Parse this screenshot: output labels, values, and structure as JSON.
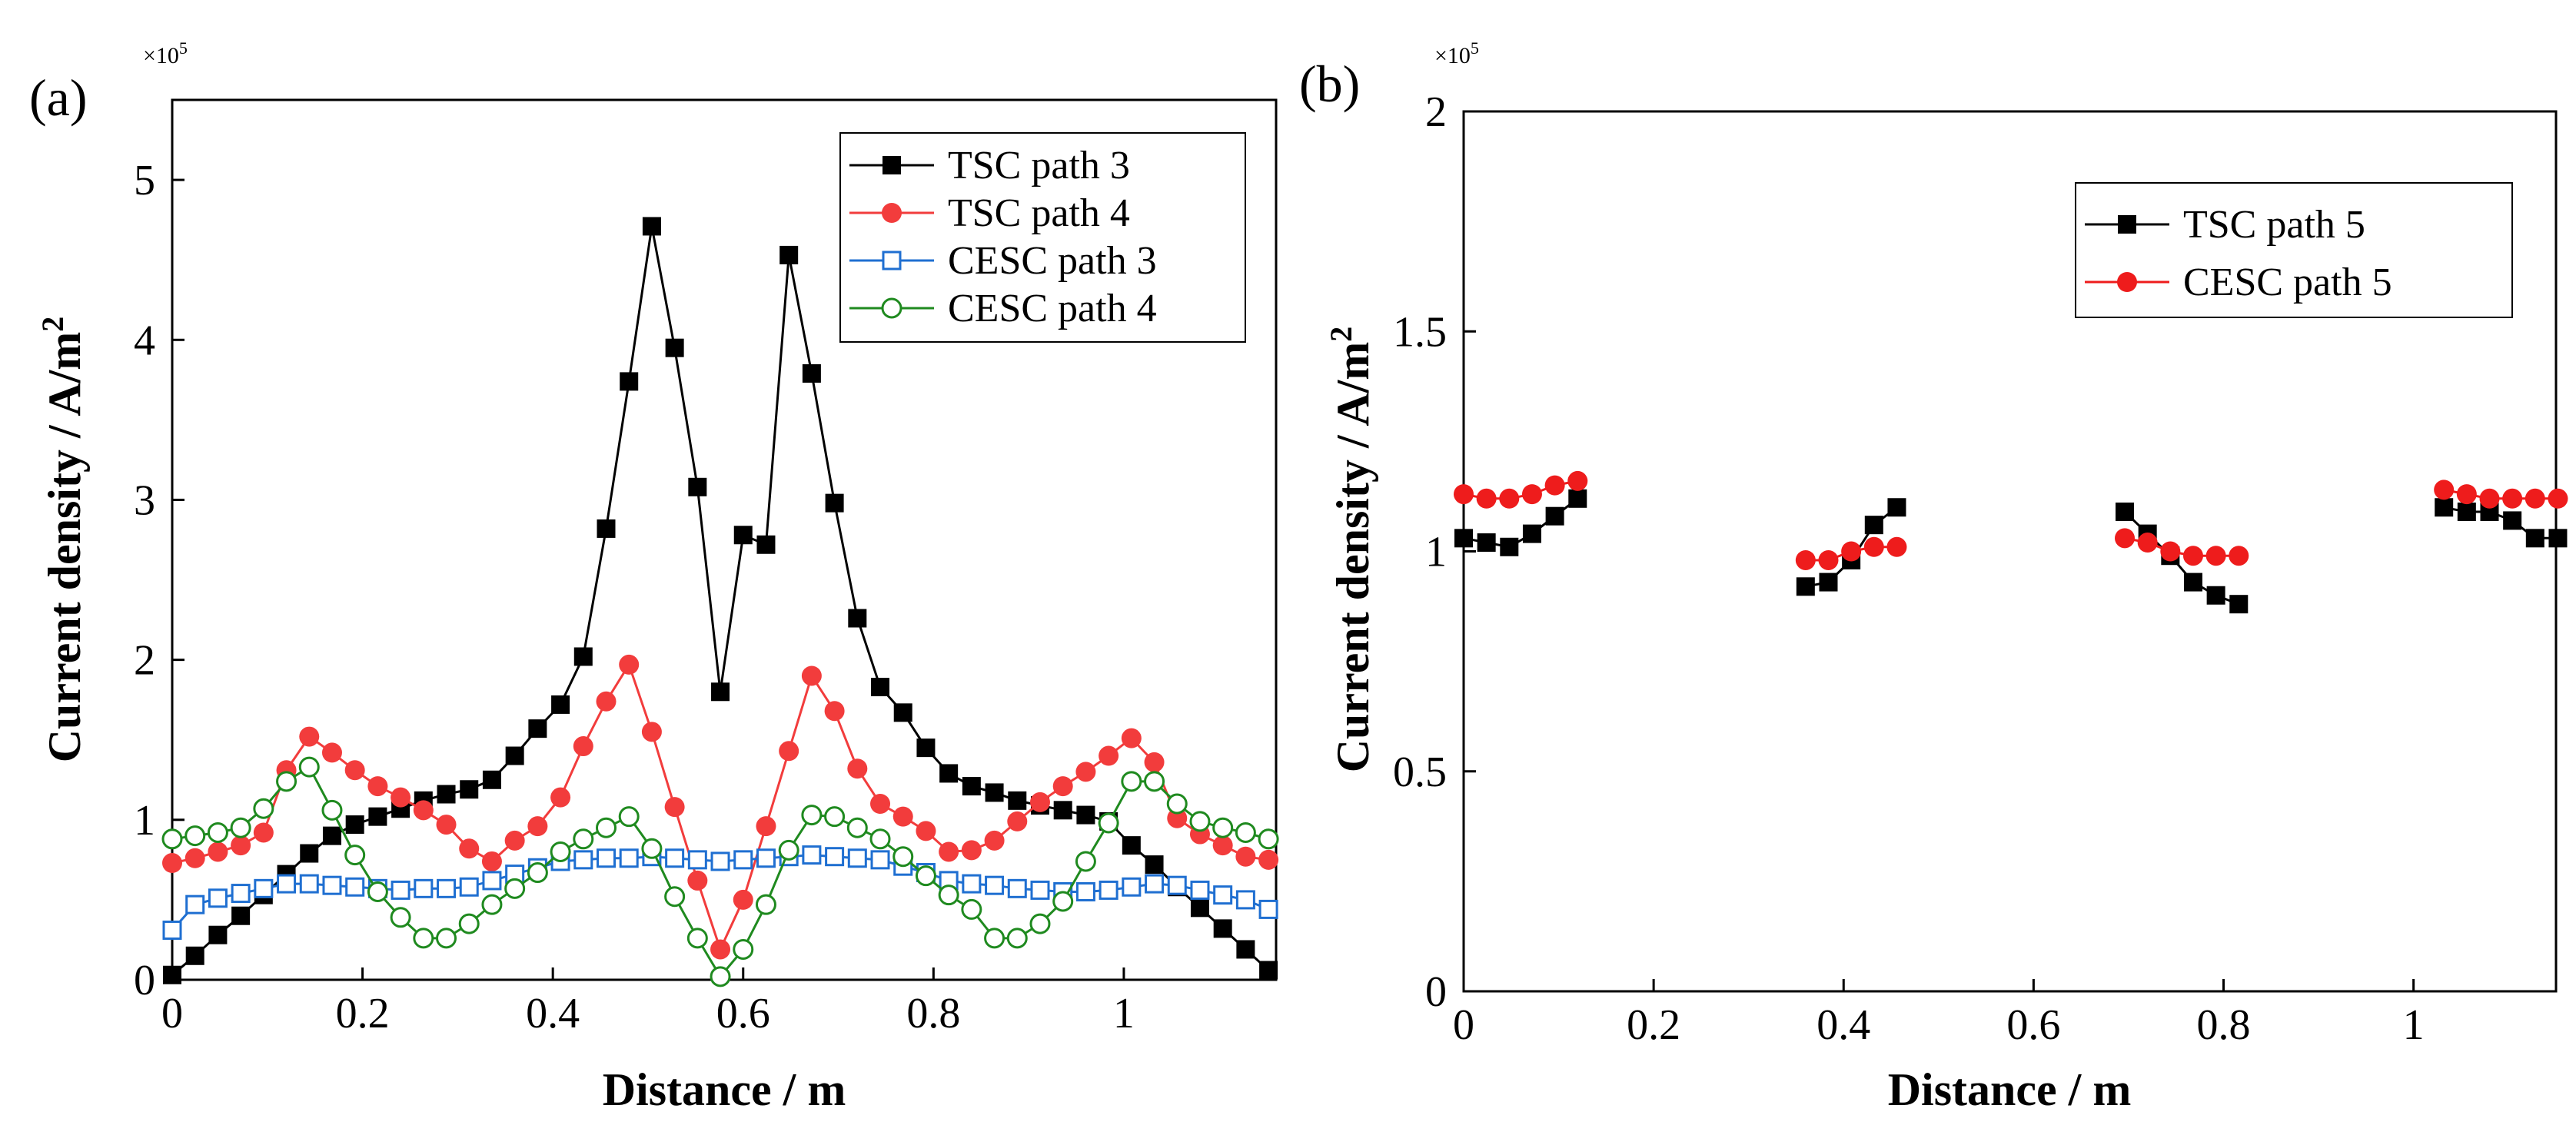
{
  "chart_data": [
    {
      "panel_label": "(a)",
      "type": "line",
      "multiplier_label": "×10",
      "multiplier_exp": "5",
      "xlabel": "Distance / m",
      "ylabel": "Current density / A/m",
      "ylabel_sup": "2",
      "xlim": [
        0,
        1.16
      ],
      "ylim": [
        0,
        5.5
      ],
      "xticks": [
        0,
        0.2,
        0.4,
        0.6,
        0.8,
        1
      ],
      "xtick_labels": [
        "0",
        "0.2",
        "0.4",
        "0.6",
        "0.8",
        "1"
      ],
      "yticks": [
        0,
        1,
        2,
        3,
        4,
        5
      ],
      "ytick_labels": [
        "0",
        "1",
        "2",
        "3",
        "4",
        "5"
      ],
      "legend_position": "top-right",
      "grid": false,
      "series": [
        {
          "name": "TSC path 3",
          "color": "#000000",
          "marker": "square-filled",
          "gaps": false,
          "x": [
            0,
            0.024,
            0.048,
            0.072,
            0.096,
            0.12,
            0.144,
            0.168,
            0.192,
            0.216,
            0.24,
            0.264,
            0.288,
            0.312,
            0.336,
            0.36,
            0.384,
            0.408,
            0.432,
            0.456,
            0.48,
            0.504,
            0.528,
            0.552,
            0.576,
            0.6,
            0.624,
            0.648,
            0.672,
            0.696,
            0.72,
            0.744,
            0.768,
            0.792,
            0.816,
            0.84,
            0.864,
            0.888,
            0.912,
            0.936,
            0.96,
            0.984,
            1.008,
            1.032,
            1.056,
            1.08,
            1.104,
            1.128,
            1.152
          ],
          "y": [
            0.03,
            0.15,
            0.28,
            0.4,
            0.53,
            0.66,
            0.79,
            0.9,
            0.97,
            1.02,
            1.07,
            1.12,
            1.16,
            1.19,
            1.25,
            1.4,
            1.57,
            1.72,
            2.02,
            2.82,
            3.74,
            4.71,
            3.95,
            3.08,
            1.8,
            2.78,
            2.72,
            4.53,
            3.79,
            2.98,
            2.26,
            1.83,
            1.67,
            1.45,
            1.29,
            1.21,
            1.17,
            1.12,
            1.09,
            1.06,
            1.03,
            0.99,
            0.84,
            0.72,
            0.58,
            0.45,
            0.32,
            0.19,
            0.06
          ]
        },
        {
          "name": "TSC path 4",
          "color": "#f23c3c",
          "marker": "circle-filled",
          "gaps": false,
          "x": [
            0,
            0.024,
            0.048,
            0.072,
            0.096,
            0.12,
            0.144,
            0.168,
            0.192,
            0.216,
            0.24,
            0.264,
            0.288,
            0.312,
            0.336,
            0.36,
            0.384,
            0.408,
            0.432,
            0.456,
            0.48,
            0.504,
            0.528,
            0.552,
            0.576,
            0.6,
            0.624,
            0.648,
            0.672,
            0.696,
            0.72,
            0.744,
            0.768,
            0.792,
            0.816,
            0.84,
            0.864,
            0.888,
            0.912,
            0.936,
            0.96,
            0.984,
            1.008,
            1.032,
            1.056,
            1.08,
            1.104,
            1.128,
            1.152
          ],
          "y": [
            0.73,
            0.76,
            0.8,
            0.84,
            0.92,
            1.31,
            1.52,
            1.42,
            1.31,
            1.21,
            1.14,
            1.06,
            0.97,
            0.82,
            0.74,
            0.87,
            0.96,
            1.14,
            1.46,
            1.74,
            1.97,
            1.55,
            1.08,
            0.62,
            0.19,
            0.5,
            0.96,
            1.43,
            1.9,
            1.68,
            1.32,
            1.1,
            1.02,
            0.93,
            0.8,
            0.81,
            0.87,
            0.99,
            1.11,
            1.21,
            1.3,
            1.4,
            1.51,
            1.36,
            1.01,
            0.91,
            0.84,
            0.77,
            0.75
          ]
        },
        {
          "name": "CESC path 3",
          "color": "#1f6fd1",
          "marker": "square-open",
          "gaps": false,
          "x": [
            0,
            0.024,
            0.048,
            0.072,
            0.096,
            0.12,
            0.144,
            0.168,
            0.192,
            0.216,
            0.24,
            0.264,
            0.288,
            0.312,
            0.336,
            0.36,
            0.384,
            0.408,
            0.432,
            0.456,
            0.48,
            0.504,
            0.528,
            0.552,
            0.576,
            0.6,
            0.624,
            0.648,
            0.672,
            0.696,
            0.72,
            0.744,
            0.768,
            0.792,
            0.816,
            0.84,
            0.864,
            0.888,
            0.912,
            0.936,
            0.96,
            0.984,
            1.008,
            1.032,
            1.056,
            1.08,
            1.104,
            1.128,
            1.152
          ],
          "y": [
            0.31,
            0.47,
            0.51,
            0.54,
            0.57,
            0.6,
            0.6,
            0.59,
            0.58,
            0.57,
            0.56,
            0.57,
            0.57,
            0.58,
            0.62,
            0.66,
            0.7,
            0.74,
            0.75,
            0.76,
            0.76,
            0.77,
            0.76,
            0.75,
            0.74,
            0.75,
            0.76,
            0.77,
            0.78,
            0.77,
            0.76,
            0.75,
            0.71,
            0.67,
            0.62,
            0.6,
            0.59,
            0.57,
            0.56,
            0.55,
            0.55,
            0.56,
            0.58,
            0.6,
            0.59,
            0.56,
            0.53,
            0.5,
            0.44
          ]
        },
        {
          "name": "CESC path 4",
          "color": "#1f8a1f",
          "marker": "circle-open",
          "gaps": false,
          "x": [
            0,
            0.024,
            0.048,
            0.072,
            0.096,
            0.12,
            0.144,
            0.168,
            0.192,
            0.216,
            0.24,
            0.264,
            0.288,
            0.312,
            0.336,
            0.36,
            0.384,
            0.408,
            0.432,
            0.456,
            0.48,
            0.504,
            0.528,
            0.552,
            0.576,
            0.6,
            0.624,
            0.648,
            0.672,
            0.696,
            0.72,
            0.744,
            0.768,
            0.792,
            0.816,
            0.84,
            0.864,
            0.888,
            0.912,
            0.936,
            0.96,
            0.984,
            1.008,
            1.032,
            1.056,
            1.08,
            1.104,
            1.128,
            1.152
          ],
          "y": [
            0.88,
            0.9,
            0.92,
            0.95,
            1.07,
            1.24,
            1.33,
            1.06,
            0.78,
            0.55,
            0.39,
            0.26,
            0.26,
            0.35,
            0.47,
            0.57,
            0.67,
            0.8,
            0.88,
            0.95,
            1.02,
            0.82,
            0.52,
            0.26,
            0.02,
            0.19,
            0.47,
            0.81,
            1.03,
            1.02,
            0.95,
            0.88,
            0.77,
            0.65,
            0.53,
            0.44,
            0.26,
            0.26,
            0.35,
            0.49,
            0.74,
            0.98,
            1.24,
            1.24,
            1.1,
            0.99,
            0.95,
            0.92,
            0.88
          ]
        }
      ]
    },
    {
      "panel_label": "(b)",
      "type": "line",
      "multiplier_label": "×10",
      "multiplier_exp": "5",
      "xlabel": "Distance / m",
      "ylabel": "Current density / A/m",
      "ylabel_sup": "2",
      "xlim": [
        0,
        1.15
      ],
      "ylim": [
        0,
        2
      ],
      "xticks": [
        0,
        0.2,
        0.4,
        0.6,
        0.8,
        1
      ],
      "xtick_labels": [
        "0",
        "0.2",
        "0.4",
        "0.6",
        "0.8",
        "1"
      ],
      "yticks": [
        0,
        0.5,
        1,
        1.5,
        2
      ],
      "ytick_labels": [
        "0",
        "0.5",
        "1",
        "1.5",
        "2"
      ],
      "legend_position": "top-right",
      "grid": false,
      "series": [
        {
          "name": "TSC path 5",
          "color": "#000000",
          "marker": "square-filled",
          "gaps": true,
          "x": [
            0,
            0.024,
            0.048,
            0.072,
            0.096,
            0.12,
            null,
            0.36,
            0.384,
            0.408,
            0.432,
            0.456,
            null,
            0.696,
            0.72,
            0.744,
            0.768,
            0.792,
            0.816,
            null,
            1.032,
            1.056,
            1.08,
            1.104,
            1.128,
            1.152
          ],
          "y": [
            1.03,
            1.02,
            1.01,
            1.04,
            1.08,
            1.12,
            null,
            0.92,
            0.93,
            0.98,
            1.06,
            1.1,
            null,
            1.09,
            1.04,
            0.99,
            0.93,
            0.9,
            0.88,
            null,
            1.1,
            1.09,
            1.09,
            1.07,
            1.03,
            1.03
          ]
        },
        {
          "name": "CESC path 5",
          "color": "#ee1c1c",
          "marker": "circle-filled",
          "gaps": true,
          "x": [
            0,
            0.024,
            0.048,
            0.072,
            0.096,
            0.12,
            null,
            0.36,
            0.384,
            0.408,
            0.432,
            0.456,
            null,
            0.696,
            0.72,
            0.744,
            0.768,
            0.792,
            0.816,
            null,
            1.032,
            1.056,
            1.08,
            1.104,
            1.128,
            1.152
          ],
          "y": [
            1.13,
            1.12,
            1.12,
            1.13,
            1.15,
            1.16,
            null,
            0.98,
            0.98,
            1.0,
            1.01,
            1.01,
            null,
            1.03,
            1.02,
            1.0,
            0.99,
            0.99,
            0.99,
            null,
            1.14,
            1.13,
            1.12,
            1.12,
            1.12,
            1.12
          ]
        }
      ]
    }
  ]
}
